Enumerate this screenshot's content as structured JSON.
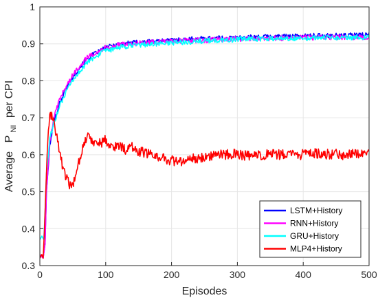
{
  "chart_data": {
    "type": "line",
    "xlabel": "Episodes",
    "ylabel": {
      "prefix": "Average",
      "p": "P",
      "subscript": "NI",
      "suffix": "per CPI"
    },
    "xlim": [
      0,
      500
    ],
    "ylim": [
      0.3,
      1.0
    ],
    "xticks": [
      "0",
      "100",
      "200",
      "300",
      "400",
      "500"
    ],
    "yticks": [
      "0.3",
      "0.4",
      "0.5",
      "0.6",
      "0.7",
      "0.8",
      "0.9",
      "1"
    ],
    "grid": true,
    "legend_position": "bottom-right",
    "series": [
      {
        "name": "LSTM+History",
        "color": "#0000ff",
        "points": [
          [
            0,
            0.33
          ],
          [
            5,
            0.32
          ],
          [
            8,
            0.36
          ],
          [
            10,
            0.5
          ],
          [
            15,
            0.62
          ],
          [
            20,
            0.68
          ],
          [
            30,
            0.74
          ],
          [
            40,
            0.78
          ],
          [
            50,
            0.81
          ],
          [
            60,
            0.835
          ],
          [
            70,
            0.855
          ],
          [
            80,
            0.87
          ],
          [
            90,
            0.88
          ],
          [
            100,
            0.89
          ],
          [
            120,
            0.9
          ],
          [
            150,
            0.905
          ],
          [
            200,
            0.91
          ],
          [
            250,
            0.915
          ],
          [
            300,
            0.917
          ],
          [
            350,
            0.92
          ],
          [
            400,
            0.922
          ],
          [
            450,
            0.923
          ],
          [
            500,
            0.925
          ]
        ]
      },
      {
        "name": "RNN+History",
        "color": "#ff00ff",
        "points": [
          [
            0,
            0.33
          ],
          [
            5,
            0.32
          ],
          [
            8,
            0.36
          ],
          [
            10,
            0.5
          ],
          [
            15,
            0.63
          ],
          [
            20,
            0.69
          ],
          [
            30,
            0.75
          ],
          [
            40,
            0.785
          ],
          [
            50,
            0.815
          ],
          [
            60,
            0.84
          ],
          [
            70,
            0.86
          ],
          [
            80,
            0.872
          ],
          [
            90,
            0.882
          ],
          [
            100,
            0.89
          ],
          [
            120,
            0.897
          ],
          [
            150,
            0.902
          ],
          [
            200,
            0.907
          ],
          [
            250,
            0.91
          ],
          [
            300,
            0.913
          ],
          [
            350,
            0.915
          ],
          [
            400,
            0.917
          ],
          [
            450,
            0.918
          ],
          [
            500,
            0.918
          ]
        ]
      },
      {
        "name": "GRU+History",
        "color": "#00ffff",
        "points": [
          [
            0,
            0.37
          ],
          [
            3,
            0.38
          ],
          [
            6,
            0.37
          ],
          [
            8,
            0.45
          ],
          [
            10,
            0.55
          ],
          [
            15,
            0.64
          ],
          [
            20,
            0.68
          ],
          [
            30,
            0.73
          ],
          [
            40,
            0.77
          ],
          [
            50,
            0.8
          ],
          [
            60,
            0.825
          ],
          [
            70,
            0.845
          ],
          [
            80,
            0.86
          ],
          [
            90,
            0.872
          ],
          [
            100,
            0.88
          ],
          [
            120,
            0.89
          ],
          [
            150,
            0.897
          ],
          [
            200,
            0.903
          ],
          [
            250,
            0.908
          ],
          [
            300,
            0.912
          ],
          [
            350,
            0.914
          ],
          [
            400,
            0.916
          ],
          [
            450,
            0.917
          ],
          [
            500,
            0.918
          ]
        ]
      },
      {
        "name": "MLP4+History",
        "color": "#ff0000",
        "points": [
          [
            0,
            0.32
          ],
          [
            3,
            0.33
          ],
          [
            5,
            0.32
          ],
          [
            7,
            0.4
          ],
          [
            9,
            0.5
          ],
          [
            11,
            0.6
          ],
          [
            13,
            0.67
          ],
          [
            15,
            0.7
          ],
          [
            18,
            0.71
          ],
          [
            22,
            0.68
          ],
          [
            27,
            0.64
          ],
          [
            32,
            0.59
          ],
          [
            37,
            0.55
          ],
          [
            42,
            0.53
          ],
          [
            47,
            0.51
          ],
          [
            52,
            0.53
          ],
          [
            57,
            0.57
          ],
          [
            62,
            0.6
          ],
          [
            67,
            0.63
          ],
          [
            72,
            0.65
          ],
          [
            80,
            0.64
          ],
          [
            90,
            0.63
          ],
          [
            100,
            0.64
          ],
          [
            110,
            0.62
          ],
          [
            120,
            0.625
          ],
          [
            130,
            0.615
          ],
          [
            140,
            0.62
          ],
          [
            150,
            0.61
          ],
          [
            160,
            0.605
          ],
          [
            170,
            0.6
          ],
          [
            180,
            0.595
          ],
          [
            190,
            0.59
          ],
          [
            200,
            0.585
          ],
          [
            210,
            0.58
          ],
          [
            220,
            0.583
          ],
          [
            230,
            0.588
          ],
          [
            240,
            0.592
          ],
          [
            250,
            0.595
          ],
          [
            260,
            0.598
          ],
          [
            270,
            0.6
          ],
          [
            280,
            0.6
          ],
          [
            290,
            0.602
          ],
          [
            300,
            0.6
          ],
          [
            310,
            0.598
          ],
          [
            320,
            0.595
          ],
          [
            330,
            0.597
          ],
          [
            340,
            0.6
          ],
          [
            350,
            0.6
          ],
          [
            360,
            0.6
          ],
          [
            370,
            0.6
          ],
          [
            380,
            0.602
          ],
          [
            390,
            0.6
          ],
          [
            400,
            0.6
          ],
          [
            420,
            0.603
          ],
          [
            440,
            0.602
          ],
          [
            460,
            0.6
          ],
          [
            480,
            0.605
          ],
          [
            490,
            0.605
          ],
          [
            500,
            0.61
          ]
        ]
      }
    ]
  }
}
